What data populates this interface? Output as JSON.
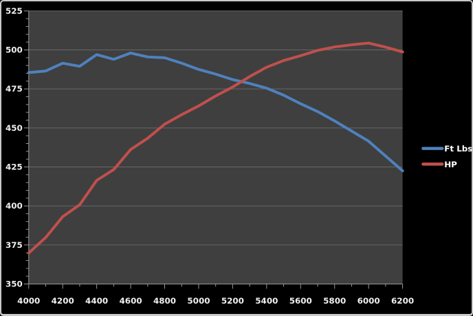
{
  "window": {
    "background": "#000000",
    "frame_border_color": "#c9c9c9"
  },
  "chart_data": {
    "type": "line",
    "title": "",
    "xlabel": "",
    "ylabel": "",
    "x": [
      4000,
      4100,
      4200,
      4300,
      4400,
      4500,
      4600,
      4700,
      4800,
      4900,
      5000,
      5100,
      5200,
      5300,
      5400,
      5500,
      5600,
      5700,
      5800,
      5900,
      6000,
      6100,
      6200
    ],
    "series": [
      {
        "name": "Ft Lbs",
        "color": "#4f81bd",
        "values": [
          485.5,
          486.5,
          491.5,
          489.5,
          497,
          494,
          498,
          495.5,
          495,
          491.5,
          487.5,
          484.5,
          481,
          478.5,
          475.5,
          471,
          465.5,
          460.5,
          454.5,
          448,
          441.5,
          432,
          422.5
        ]
      },
      {
        "name": "HP",
        "color": "#c0504d",
        "values": [
          369.8,
          379.8,
          393.1,
          400.8,
          416.4,
          423.3,
          436.2,
          443.4,
          452.4,
          458.5,
          464.1,
          470.5,
          476.2,
          482.9,
          488.9,
          493.2,
          496.3,
          499.7,
          501.9,
          503.3,
          504.4,
          501.8,
          498.7
        ]
      }
    ],
    "xlim": [
      4000,
      6200
    ],
    "ylim": [
      350,
      525
    ],
    "x_tick_step": 200,
    "x_minor_tick_step": 100,
    "y_tick_step": 25,
    "y_minor_tick_step": 5,
    "x_tick_labels": [
      "4000",
      "4200",
      "4400",
      "4600",
      "4800",
      "5000",
      "5200",
      "5400",
      "5600",
      "5800",
      "6000",
      "6200"
    ],
    "y_tick_labels": [
      "350",
      "375",
      "400",
      "425",
      "450",
      "475",
      "500",
      "525"
    ],
    "grid": "horizontal gridlines on, vertical off",
    "legend_position": "right",
    "colors": {
      "plot_background": "#3f3f3f",
      "grid_color": "#686868",
      "axis_color": "#9a9a9a",
      "tick_label_color": "#efefef",
      "legend_text_color": "#ffffff"
    }
  }
}
